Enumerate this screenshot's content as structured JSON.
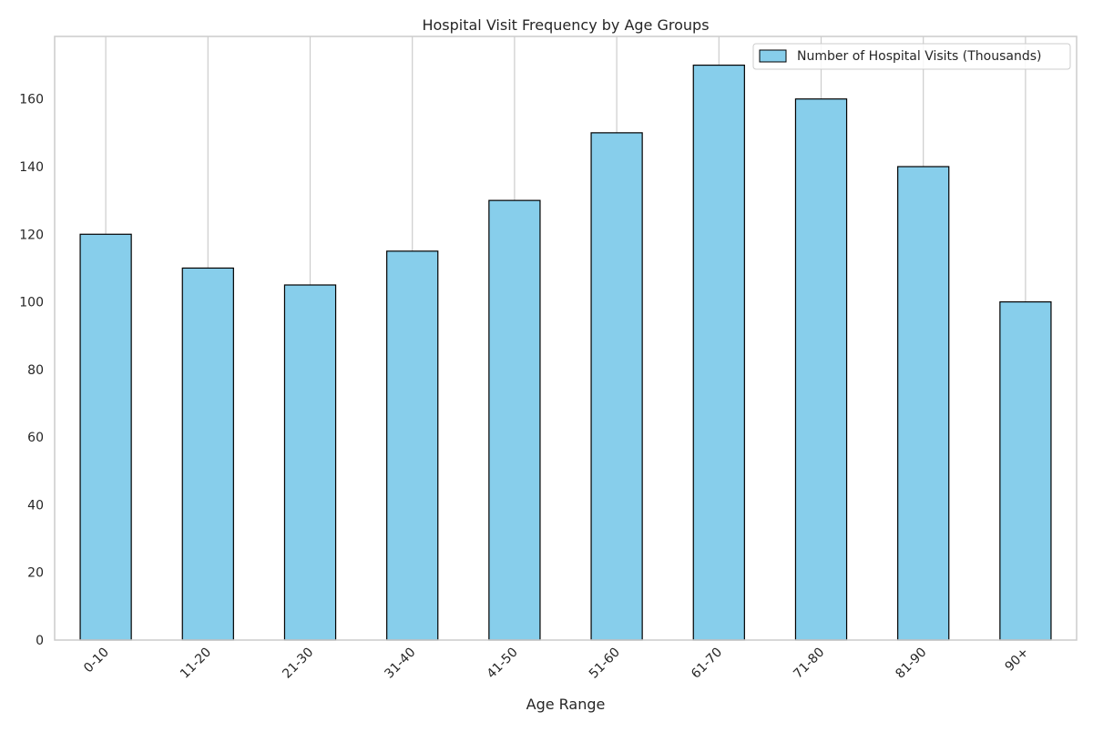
{
  "chart_data": {
    "type": "bar",
    "title": "Hospital Visit Frequency by Age Groups",
    "xlabel": "Age Range",
    "ylabel": "",
    "categories": [
      "0-10",
      "11-20",
      "21-30",
      "31-40",
      "41-50",
      "51-60",
      "61-70",
      "71-80",
      "81-90",
      "90+"
    ],
    "series": [
      {
        "name": "Number of Hospital Visits (Thousands)",
        "values": [
          120,
          110,
          105,
          115,
          130,
          150,
          170,
          160,
          140,
          100
        ]
      }
    ],
    "ylim": [
      0,
      178.5
    ],
    "yticks": [
      0,
      20,
      40,
      60,
      80,
      100,
      120,
      140,
      160
    ],
    "grid": "vertical",
    "legend_position": "top-right",
    "colors": {
      "bar_fill": "#87ceeb",
      "bar_edge": "#000000",
      "grid": "#cccccc",
      "axes_edge": "#cccccc"
    }
  }
}
